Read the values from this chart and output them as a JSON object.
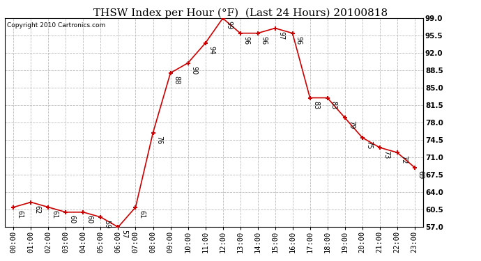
{
  "title": "THSW Index per Hour (°F)  (Last 24 Hours) 20100818",
  "copyright": "Copyright 2010 Cartronics.com",
  "hours": [
    "00:00",
    "01:00",
    "02:00",
    "03:00",
    "04:00",
    "05:00",
    "06:00",
    "07:00",
    "08:00",
    "09:00",
    "10:00",
    "11:00",
    "12:00",
    "13:00",
    "14:00",
    "15:00",
    "16:00",
    "17:00",
    "18:00",
    "19:00",
    "20:00",
    "21:00",
    "22:00",
    "23:00"
  ],
  "values": [
    61,
    62,
    61,
    60,
    60,
    59,
    57,
    61,
    76,
    88,
    90,
    94,
    99,
    96,
    96,
    97,
    96,
    83,
    83,
    79,
    75,
    73,
    72,
    69
  ],
  "ylim_min": 57.0,
  "ylim_max": 99.0,
  "yticks": [
    57.0,
    60.5,
    64.0,
    67.5,
    71.0,
    74.5,
    78.0,
    81.5,
    85.0,
    88.5,
    92.0,
    95.5,
    99.0
  ],
  "ytick_labels": [
    "57.0",
    "60.5",
    "64.0",
    "67.5",
    "71.0",
    "74.5",
    "78.0",
    "81.5",
    "85.0",
    "88.5",
    "92.0",
    "95.5",
    "99.0"
  ],
  "line_color": "#cc0000",
  "marker_color": "#cc0000",
  "bg_color": "#ffffff",
  "plot_bg_color": "#ffffff",
  "grid_color": "#bbbbbb",
  "title_fontsize": 11,
  "tick_fontsize": 7.5,
  "label_fontsize": 7,
  "copyright_fontsize": 6.5
}
